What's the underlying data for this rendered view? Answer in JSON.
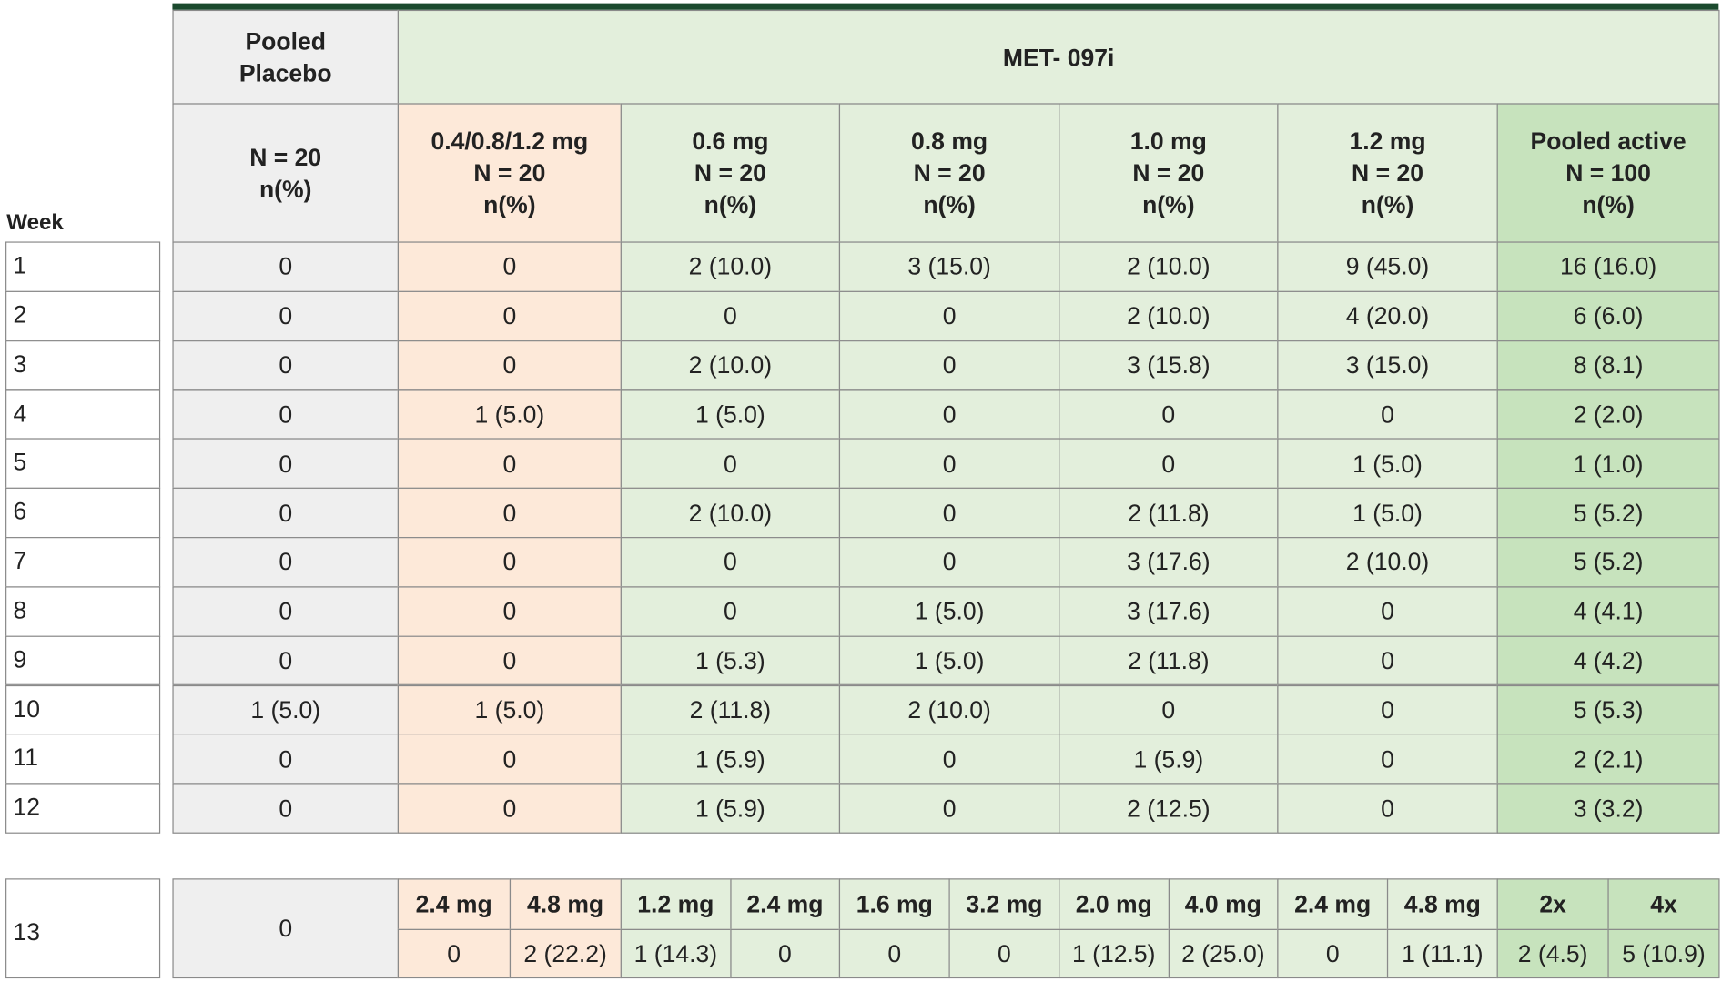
{
  "header": {
    "placebo_lines": [
      "Pooled",
      "Placebo"
    ],
    "group_label": "MET- 097i"
  },
  "week_header": "Week",
  "columns": [
    {
      "lines": [
        "N = 20",
        "n(%)"
      ]
    },
    {
      "lines": [
        "0.4/0.8/1.2 mg",
        "N = 20",
        "n(%)"
      ]
    },
    {
      "lines": [
        "0.6 mg",
        "N = 20",
        "n(%)"
      ]
    },
    {
      "lines": [
        "0.8 mg",
        "N = 20",
        "n(%)"
      ]
    },
    {
      "lines": [
        "1.0 mg",
        "N = 20",
        "n(%)"
      ]
    },
    {
      "lines": [
        "1.2 mg",
        "N = 20",
        "n(%)"
      ]
    },
    {
      "lines": [
        "Pooled active",
        "N = 100",
        "n(%)"
      ]
    }
  ],
  "rows": [
    {
      "week": "1",
      "values": [
        "0",
        "0",
        "2 (10.0)",
        "3 (15.0)",
        "2 (10.0)",
        "9 (45.0)",
        "16 (16.0)"
      ]
    },
    {
      "week": "2",
      "values": [
        "0",
        "0",
        "0",
        "0",
        "2 (10.0)",
        "4 (20.0)",
        "6 (6.0)"
      ]
    },
    {
      "week": "3",
      "values": [
        "0",
        "0",
        "2 (10.0)",
        "0",
        "3 (15.8)",
        "3 (15.0)",
        "8 (8.1)"
      ]
    },
    {
      "week": "4",
      "values": [
        "0",
        "1 (5.0)",
        "1 (5.0)",
        "0",
        "0",
        "0",
        "2 (2.0)"
      ]
    },
    {
      "week": "5",
      "values": [
        "0",
        "0",
        "0",
        "0",
        "0",
        "1 (5.0)",
        "1 (1.0)"
      ]
    },
    {
      "week": "6",
      "values": [
        "0",
        "0",
        "2 (10.0)",
        "0",
        "2 (11.8)",
        "1 (5.0)",
        "5 (5.2)"
      ]
    },
    {
      "week": "7",
      "values": [
        "0",
        "0",
        "0",
        "0",
        "3 (17.6)",
        "2 (10.0)",
        "5 (5.2)"
      ]
    },
    {
      "week": "8",
      "values": [
        "0",
        "0",
        "0",
        "1 (5.0)",
        "3 (17.6)",
        "0",
        "4 (4.1)"
      ]
    },
    {
      "week": "9",
      "values": [
        "0",
        "0",
        "1 (5.3)",
        "1 (5.0)",
        "2 (11.8)",
        "0",
        "4 (4.2)"
      ]
    },
    {
      "week": "10",
      "values": [
        "1 (5.0)",
        "1 (5.0)",
        "2 (11.8)",
        "2 (10.0)",
        "0",
        "0",
        "5 (5.3)"
      ]
    },
    {
      "week": "11",
      "values": [
        "0",
        "0",
        "1 (5.9)",
        "0",
        "1 (5.9)",
        "0",
        "2 (2.1)"
      ]
    },
    {
      "week": "12",
      "values": [
        "0",
        "0",
        "1 (5.9)",
        "0",
        "2 (12.5)",
        "0",
        "3 (3.2)"
      ]
    }
  ],
  "row13": {
    "week": "13",
    "placebo": "0",
    "sub": [
      {
        "dose": "2.4 mg",
        "value": "0"
      },
      {
        "dose": "4.8 mg",
        "value": "2 (22.2)"
      },
      {
        "dose": "1.2 mg",
        "value": "1 (14.3)"
      },
      {
        "dose": "2.4 mg",
        "value": "0"
      },
      {
        "dose": "1.6 mg",
        "value": "0"
      },
      {
        "dose": "3.2 mg",
        "value": "0"
      },
      {
        "dose": "2.0 mg",
        "value": "1 (12.5)"
      },
      {
        "dose": "4.0 mg",
        "value": "2 (25.0)"
      },
      {
        "dose": "2.4 mg",
        "value": "0"
      },
      {
        "dose": "4.8 mg",
        "value": "1 (11.1)"
      },
      {
        "dose": "2x",
        "value": "2 (4.5)"
      },
      {
        "dose": "4x",
        "value": "5 (10.9)"
      }
    ]
  }
}
